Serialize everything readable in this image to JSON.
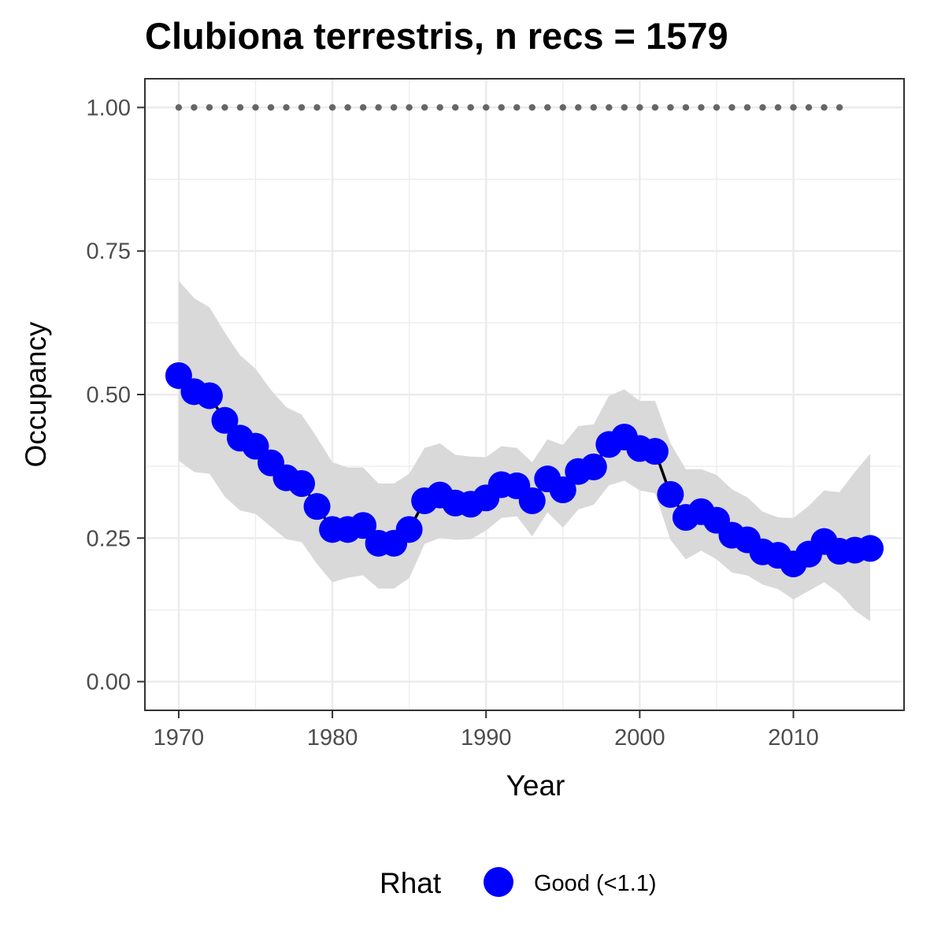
{
  "chart_data": {
    "type": "line",
    "title": "Clubiona terrestris, n recs = 1579",
    "xlabel": "Year",
    "ylabel": "Occupancy",
    "xlim": [
      1967.8,
      2017.2
    ],
    "ylim": [
      -0.05,
      1.05
    ],
    "x_ticks": [
      1970,
      1980,
      1990,
      2000,
      2010
    ],
    "x_tick_labels": [
      "1970",
      "1980",
      "1990",
      "2000",
      "2010"
    ],
    "y_ticks": [
      0,
      0.25,
      0.5,
      0.75,
      1
    ],
    "y_tick_labels": [
      "0.00",
      "0.25",
      "0.50",
      "0.75",
      "1.00"
    ],
    "grid": true,
    "x": [
      1970,
      1971,
      1972,
      1973,
      1974,
      1975,
      1976,
      1977,
      1978,
      1979,
      1980,
      1981,
      1982,
      1983,
      1984,
      1985,
      1986,
      1987,
      1988,
      1989,
      1990,
      1991,
      1992,
      1993,
      1994,
      1995,
      1996,
      1997,
      1998,
      1999,
      2000,
      2001,
      2002,
      2003,
      2004,
      2005,
      2006,
      2007,
      2008,
      2009,
      2010,
      2011,
      2012,
      2013,
      2014,
      2015
    ],
    "series": [
      {
        "name": "Good (<1.1)",
        "color": "#0000ff",
        "values": [
          0.533,
          0.505,
          0.498,
          0.455,
          0.424,
          0.41,
          0.381,
          0.355,
          0.345,
          0.305,
          0.265,
          0.265,
          0.272,
          0.241,
          0.241,
          0.265,
          0.315,
          0.325,
          0.311,
          0.309,
          0.32,
          0.343,
          0.341,
          0.315,
          0.353,
          0.334,
          0.366,
          0.374,
          0.413,
          0.426,
          0.406,
          0.401,
          0.326,
          0.286,
          0.296,
          0.281,
          0.255,
          0.247,
          0.226,
          0.22,
          0.205,
          0.222,
          0.244,
          0.227,
          0.229,
          0.232
        ],
        "lower": [
          0.385,
          0.365,
          0.362,
          0.322,
          0.298,
          0.292,
          0.27,
          0.248,
          0.243,
          0.205,
          0.173,
          0.181,
          0.185,
          0.162,
          0.162,
          0.18,
          0.24,
          0.25,
          0.247,
          0.248,
          0.263,
          0.285,
          0.288,
          0.253,
          0.295,
          0.268,
          0.3,
          0.308,
          0.342,
          0.35,
          0.333,
          0.328,
          0.247,
          0.213,
          0.228,
          0.213,
          0.19,
          0.185,
          0.169,
          0.161,
          0.143,
          0.158,
          0.173,
          0.154,
          0.124,
          0.105
        ],
        "upper": [
          0.698,
          0.668,
          0.652,
          0.608,
          0.568,
          0.545,
          0.508,
          0.478,
          0.465,
          0.425,
          0.382,
          0.373,
          0.373,
          0.345,
          0.345,
          0.362,
          0.407,
          0.415,
          0.395,
          0.392,
          0.391,
          0.41,
          0.407,
          0.382,
          0.422,
          0.412,
          0.445,
          0.448,
          0.498,
          0.509,
          0.489,
          0.489,
          0.415,
          0.37,
          0.37,
          0.36,
          0.335,
          0.321,
          0.296,
          0.286,
          0.285,
          0.306,
          0.333,
          0.33,
          0.365,
          0.397
        ]
      }
    ],
    "reference_line": {
      "value": 1.0,
      "x_start": 1970,
      "x_end": 2013,
      "style": "dotted",
      "color": "#666666"
    },
    "band_color": "#d9d9d9",
    "line_color": "#000000",
    "legend": {
      "title": "Rhat",
      "position": "bottom",
      "entries": [
        {
          "label": "Good (<1.1)",
          "color": "#0000ff"
        }
      ]
    }
  }
}
